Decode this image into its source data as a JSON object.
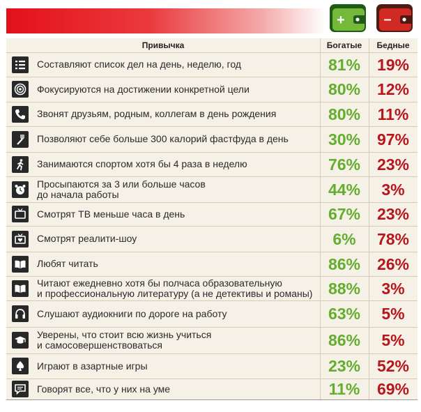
{
  "header": {
    "habit": "Привычка",
    "rich": "Богатые",
    "poor": "Бедные"
  },
  "wallets": {
    "rich_sign": "+",
    "poor_sign": "–"
  },
  "colors": {
    "banner": "#e4101b",
    "rich": "#65ad2f",
    "poor": "#b8161d",
    "table_bg": "#f6f1e6"
  },
  "rows": [
    {
      "icon": "list-icon",
      "text": "Составляют список дел на день, неделю, год",
      "rich": "81%",
      "poor": "19%"
    },
    {
      "icon": "target-icon",
      "text": "Фокусируются на достижении конкретной цели",
      "rich": "80%",
      "poor": "12%"
    },
    {
      "icon": "phone-icon",
      "text": "Звонят друзьям, родным, коллегам в день рождения",
      "rich": "80%",
      "poor": "11%"
    },
    {
      "icon": "fork-icon",
      "text": "Позволяют себе больше 300 калорий фастфуда в день",
      "rich": "30%",
      "poor": "97%"
    },
    {
      "icon": "runner-icon",
      "text": "Занимаются спортом хотя бы 4 раза в неделю",
      "rich": "76%",
      "poor": "23%"
    },
    {
      "icon": "alarm-clock-icon",
      "text": "Просыпаются за 3 или больше часов\nдо начала работы",
      "rich": "44%",
      "poor": "3%"
    },
    {
      "icon": "tv-icon",
      "text": "Смотрят ТВ меньше часа в день",
      "rich": "67%",
      "poor": "23%"
    },
    {
      "icon": "tv-heart-icon",
      "text": "Смотрят реалити-шоу",
      "rich": "6%",
      "poor": "78%"
    },
    {
      "icon": "book-icon",
      "text": "Любят читать",
      "rich": "86%",
      "poor": "26%"
    },
    {
      "icon": "book-icon",
      "text": "Читают ежедневно хотя бы полчаса образовательную\nи профессиональную литературу (а не детективы и романы)",
      "rich": "88%",
      "poor": "3%"
    },
    {
      "icon": "headphones-icon",
      "text": "Слушают аудиокниги по дороге на работу",
      "rich": "63%",
      "poor": "5%"
    },
    {
      "icon": "graduation-cap-icon",
      "text": "Уверены, что стоит всю жизнь учиться\nи самосовершенствоваться",
      "rich": "86%",
      "poor": "5%"
    },
    {
      "icon": "spade-icon",
      "text": "Играют в азартные игры",
      "rich": "23%",
      "poor": "52%"
    },
    {
      "icon": "speech-bubble-icon",
      "text": "Говорят все, что у них на уме",
      "rich": "11%",
      "poor": "69%"
    }
  ],
  "chart_data": {
    "type": "table",
    "columns": [
      "Привычка",
      "Богатые",
      "Бедные"
    ],
    "categories": [
      "Составляют список дел на день, неделю, год",
      "Фокусируются на достижении конкретной цели",
      "Звонят друзьям, родным, коллегам в день рождения",
      "Позволяют себе больше 300 калорий фастфуда в день",
      "Занимаются спортом хотя бы 4 раза в неделю",
      "Просыпаются за 3 или больше часов до начала работы",
      "Смотрят ТВ меньше часа в день",
      "Смотрят реалити-шоу",
      "Любят читать",
      "Читают ежедневно хотя бы полчаса образовательную и профессиональную литературу (а не детективы и романы)",
      "Слушают аудиокниги по дороге на работу",
      "Уверены, что стоит всю жизнь учиться и самосовершенствоваться",
      "Играют в азартные игры",
      "Говорят все, что у них на уме"
    ],
    "series": [
      {
        "name": "Богатые",
        "values": [
          81,
          80,
          80,
          30,
          76,
          44,
          67,
          6,
          86,
          88,
          63,
          86,
          23,
          11
        ]
      },
      {
        "name": "Бедные",
        "values": [
          19,
          12,
          11,
          97,
          23,
          3,
          23,
          78,
          26,
          3,
          5,
          5,
          52,
          69
        ]
      }
    ]
  }
}
